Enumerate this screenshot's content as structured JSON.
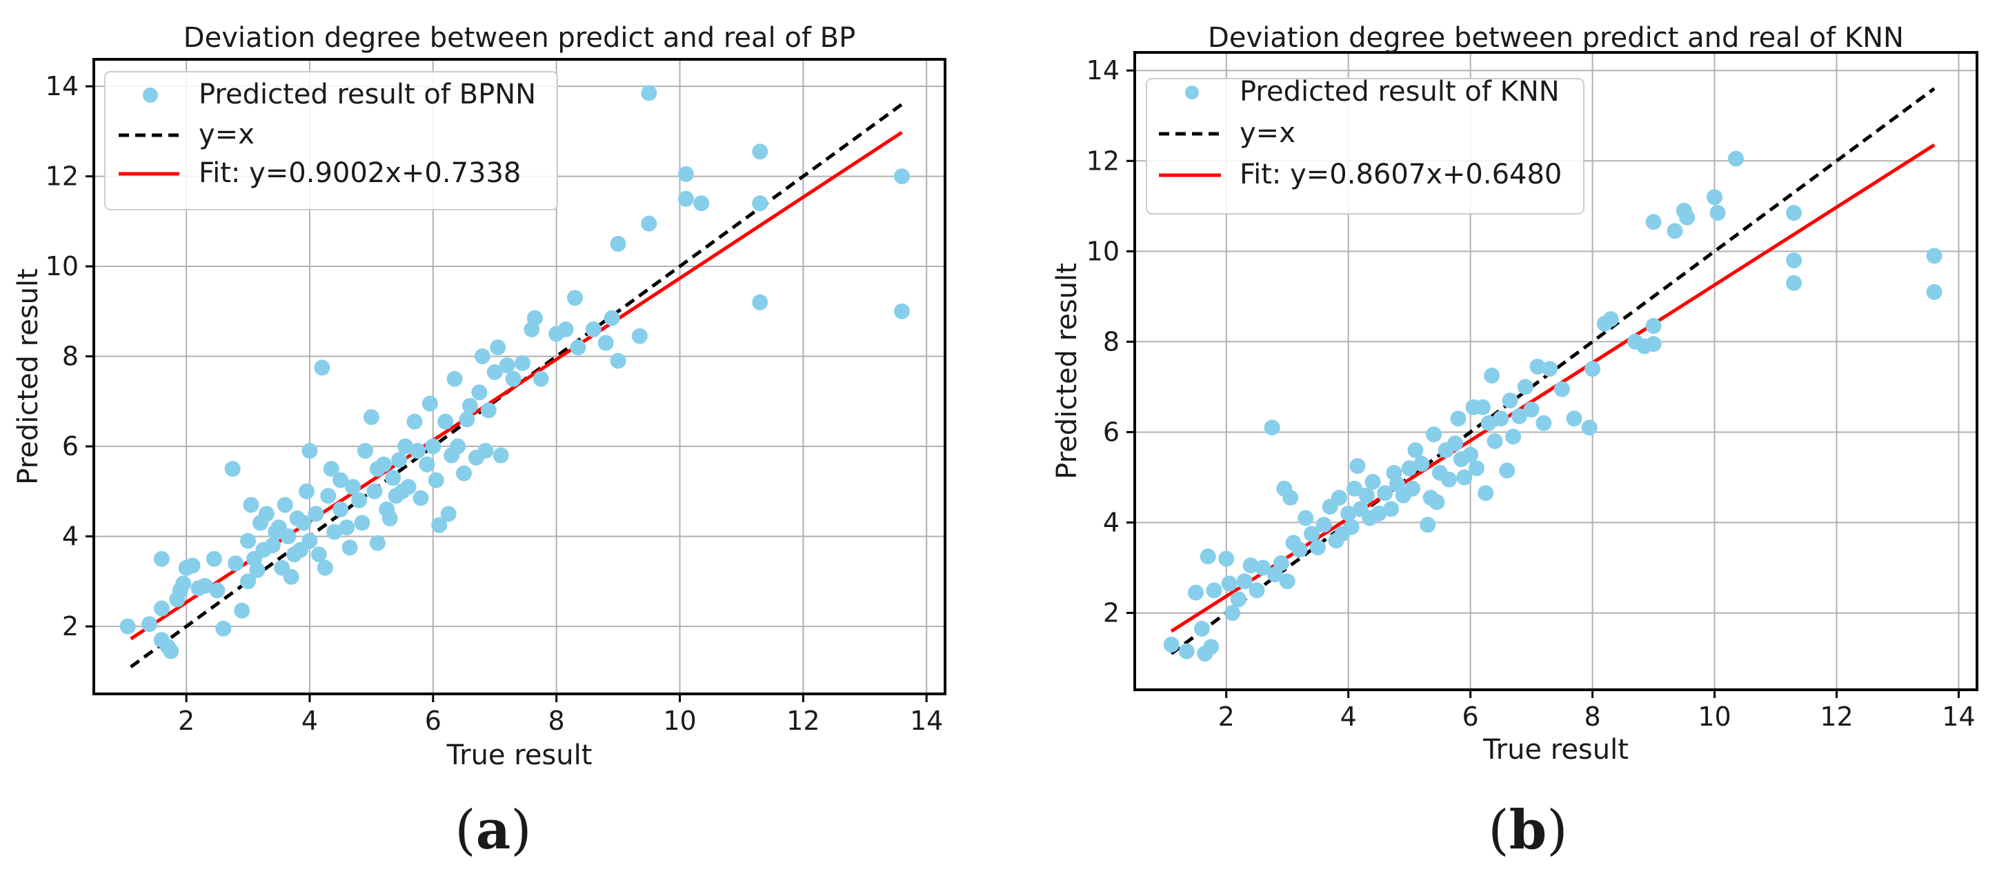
{
  "panel_labels": [
    "a",
    "b"
  ],
  "chart_data": [
    {
      "type": "scatter",
      "title": "Deviation degree between predict and real of BP",
      "xlabel": "True result",
      "ylabel": "Predicted result",
      "xlim": [
        0.5,
        14.3
      ],
      "ylim": [
        0.5,
        14.6
      ],
      "xticks": [
        2,
        4,
        6,
        8,
        10,
        12,
        14
      ],
      "yticks": [
        2,
        4,
        6,
        8,
        10,
        12,
        14
      ],
      "grid": true,
      "legend_position": "top-left",
      "colors": {
        "points": "#87ceeb",
        "identity": "#000000",
        "fit": "#ff0000"
      },
      "legend": [
        {
          "label": "Predicted result of BPNN",
          "kind": "marker"
        },
        {
          "label": "y=x",
          "kind": "dashed"
        },
        {
          "label": "Fit: y=0.9002x+0.7338",
          "kind": "line"
        }
      ],
      "lines": [
        {
          "kind": "identity",
          "x": [
            1.1,
            13.6
          ],
          "y": [
            1.1,
            13.6
          ]
        },
        {
          "kind": "fit",
          "slope": 0.9002,
          "intercept": 0.7338,
          "x": [
            1.1,
            13.6
          ]
        }
      ],
      "series": [
        {
          "name": "Predicted result of BPNN",
          "points": [
            [
              1.05,
              2.0
            ],
            [
              1.4,
              2.05
            ],
            [
              1.6,
              3.5
            ],
            [
              1.7,
              1.55
            ],
            [
              1.6,
              1.7
            ],
            [
              1.75,
              1.45
            ],
            [
              1.6,
              2.4
            ],
            [
              1.9,
              2.8
            ],
            [
              1.85,
              2.6
            ],
            [
              1.95,
              2.95
            ],
            [
              2.0,
              3.3
            ],
            [
              2.1,
              3.35
            ],
            [
              2.2,
              2.85
            ],
            [
              2.3,
              2.9
            ],
            [
              2.45,
              3.5
            ],
            [
              2.5,
              2.8
            ],
            [
              2.6,
              1.95
            ],
            [
              2.75,
              5.5
            ],
            [
              2.8,
              3.4
            ],
            [
              2.9,
              2.35
            ],
            [
              3.0,
              3.0
            ],
            [
              3.0,
              3.9
            ],
            [
              3.05,
              4.7
            ],
            [
              3.1,
              3.5
            ],
            [
              3.15,
              3.25
            ],
            [
              3.2,
              4.3
            ],
            [
              3.25,
              3.7
            ],
            [
              3.3,
              4.5
            ],
            [
              3.4,
              3.8
            ],
            [
              3.45,
              4.1
            ],
            [
              3.5,
              4.2
            ],
            [
              3.55,
              3.3
            ],
            [
              3.6,
              4.7
            ],
            [
              3.65,
              4.0
            ],
            [
              3.7,
              3.1
            ],
            [
              3.75,
              3.6
            ],
            [
              3.8,
              4.4
            ],
            [
              3.85,
              3.7
            ],
            [
              3.9,
              4.3
            ],
            [
              3.95,
              5.0
            ],
            [
              4.0,
              5.9
            ],
            [
              4.0,
              3.9
            ],
            [
              4.1,
              4.5
            ],
            [
              4.15,
              3.6
            ],
            [
              4.2,
              7.75
            ],
            [
              4.25,
              3.3
            ],
            [
              4.3,
              4.9
            ],
            [
              4.35,
              5.5
            ],
            [
              4.4,
              4.1
            ],
            [
              4.5,
              4.6
            ],
            [
              4.5,
              5.25
            ],
            [
              4.6,
              4.2
            ],
            [
              4.65,
              3.75
            ],
            [
              4.7,
              5.1
            ],
            [
              4.8,
              4.8
            ],
            [
              4.85,
              4.3
            ],
            [
              4.9,
              5.9
            ],
            [
              5.0,
              6.65
            ],
            [
              5.05,
              5.0
            ],
            [
              5.1,
              3.85
            ],
            [
              5.1,
              5.5
            ],
            [
              5.2,
              5.6
            ],
            [
              5.25,
              4.6
            ],
            [
              5.3,
              4.4
            ],
            [
              5.35,
              5.3
            ],
            [
              5.4,
              4.9
            ],
            [
              5.45,
              5.7
            ],
            [
              5.5,
              5.0
            ],
            [
              5.55,
              6.0
            ],
            [
              5.6,
              5.1
            ],
            [
              5.7,
              6.55
            ],
            [
              5.75,
              5.9
            ],
            [
              5.8,
              4.85
            ],
            [
              5.9,
              5.6
            ],
            [
              5.95,
              6.95
            ],
            [
              6.0,
              6.0
            ],
            [
              6.05,
              5.25
            ],
            [
              6.1,
              4.25
            ],
            [
              6.2,
              6.55
            ],
            [
              6.25,
              4.5
            ],
            [
              6.3,
              5.8
            ],
            [
              6.35,
              7.5
            ],
            [
              6.4,
              6.0
            ],
            [
              6.5,
              5.4
            ],
            [
              6.55,
              6.6
            ],
            [
              6.6,
              6.9
            ],
            [
              6.7,
              5.75
            ],
            [
              6.75,
              7.2
            ],
            [
              6.8,
              8.0
            ],
            [
              6.85,
              5.9
            ],
            [
              6.9,
              6.8
            ],
            [
              7.0,
              7.65
            ],
            [
              7.05,
              8.2
            ],
            [
              7.1,
              5.8
            ],
            [
              7.2,
              7.8
            ],
            [
              7.3,
              7.5
            ],
            [
              7.45,
              7.85
            ],
            [
              7.6,
              8.6
            ],
            [
              7.65,
              8.85
            ],
            [
              7.75,
              7.5
            ],
            [
              8.0,
              8.5
            ],
            [
              8.15,
              8.6
            ],
            [
              8.3,
              9.3
            ],
            [
              8.35,
              8.2
            ],
            [
              8.6,
              8.6
            ],
            [
              8.8,
              8.3
            ],
            [
              8.9,
              8.85
            ],
            [
              9.0,
              7.9
            ],
            [
              9.0,
              10.5
            ],
            [
              9.35,
              8.45
            ],
            [
              9.5,
              10.95
            ],
            [
              9.5,
              13.85
            ],
            [
              10.1,
              12.05
            ],
            [
              10.1,
              11.5
            ],
            [
              10.35,
              11.4
            ],
            [
              11.3,
              12.55
            ],
            [
              11.3,
              11.4
            ],
            [
              11.3,
              9.2
            ],
            [
              13.6,
              12.0
            ],
            [
              13.6,
              9.0
            ]
          ]
        }
      ]
    },
    {
      "type": "scatter",
      "title": "Deviation degree between predict and real of KNN",
      "xlabel": "True result",
      "ylabel": "Predicted result",
      "xlim": [
        0.5,
        14.3
      ],
      "ylim": [
        0.3,
        14.4
      ],
      "xticks": [
        2,
        4,
        6,
        8,
        10,
        12,
        14
      ],
      "yticks": [
        2,
        4,
        6,
        8,
        10,
        12,
        14
      ],
      "grid": true,
      "legend_position": "top-left",
      "colors": {
        "points": "#87ceeb",
        "identity": "#000000",
        "fit": "#ff0000"
      },
      "legend": [
        {
          "label": "Predicted result of KNN",
          "kind": "marker"
        },
        {
          "label": "y=x",
          "kind": "dashed"
        },
        {
          "label": "Fit: y=0.8607x+0.6480",
          "kind": "line"
        }
      ],
      "lines": [
        {
          "kind": "identity",
          "x": [
            1.1,
            13.6
          ],
          "y": [
            1.1,
            13.6
          ]
        },
        {
          "kind": "fit",
          "slope": 0.8607,
          "intercept": 0.648,
          "x": [
            1.1,
            13.6
          ]
        }
      ],
      "series": [
        {
          "name": "Predicted result of KNN",
          "points": [
            [
              1.1,
              1.3
            ],
            [
              1.35,
              1.15
            ],
            [
              1.5,
              2.45
            ],
            [
              1.6,
              1.65
            ],
            [
              1.65,
              1.1
            ],
            [
              1.75,
              1.25
            ],
            [
              1.7,
              3.25
            ],
            [
              1.8,
              2.5
            ],
            [
              2.0,
              3.2
            ],
            [
              2.05,
              2.65
            ],
            [
              2.1,
              2.0
            ],
            [
              2.2,
              2.3
            ],
            [
              2.3,
              2.7
            ],
            [
              2.4,
              3.05
            ],
            [
              2.5,
              2.5
            ],
            [
              2.6,
              3.0
            ],
            [
              2.75,
              6.1
            ],
            [
              2.8,
              2.85
            ],
            [
              2.9,
              3.1
            ],
            [
              2.95,
              4.75
            ],
            [
              3.0,
              2.7
            ],
            [
              3.05,
              4.55
            ],
            [
              3.1,
              3.55
            ],
            [
              3.2,
              3.4
            ],
            [
              3.3,
              4.1
            ],
            [
              3.4,
              3.75
            ],
            [
              3.5,
              3.45
            ],
            [
              3.6,
              3.95
            ],
            [
              3.7,
              4.35
            ],
            [
              3.8,
              3.6
            ],
            [
              3.85,
              4.55
            ],
            [
              3.9,
              3.75
            ],
            [
              4.0,
              4.2
            ],
            [
              4.05,
              3.9
            ],
            [
              4.1,
              4.75
            ],
            [
              4.15,
              5.25
            ],
            [
              4.2,
              4.3
            ],
            [
              4.3,
              4.6
            ],
            [
              4.35,
              4.1
            ],
            [
              4.4,
              4.9
            ],
            [
              4.5,
              4.2
            ],
            [
              4.6,
              4.65
            ],
            [
              4.7,
              4.3
            ],
            [
              4.75,
              5.1
            ],
            [
              4.8,
              4.85
            ],
            [
              4.9,
              4.6
            ],
            [
              5.0,
              5.2
            ],
            [
              5.05,
              4.75
            ],
            [
              5.1,
              5.6
            ],
            [
              5.2,
              5.3
            ],
            [
              5.3,
              3.95
            ],
            [
              5.35,
              4.55
            ],
            [
              5.4,
              5.95
            ],
            [
              5.45,
              4.45
            ],
            [
              5.5,
              5.1
            ],
            [
              5.6,
              5.6
            ],
            [
              5.65,
              4.95
            ],
            [
              5.75,
              5.75
            ],
            [
              5.8,
              6.3
            ],
            [
              5.85,
              5.4
            ],
            [
              5.9,
              5.0
            ],
            [
              6.0,
              5.5
            ],
            [
              6.05,
              6.55
            ],
            [
              6.1,
              5.2
            ],
            [
              6.2,
              6.55
            ],
            [
              6.25,
              4.65
            ],
            [
              6.3,
              6.2
            ],
            [
              6.35,
              7.25
            ],
            [
              6.4,
              5.8
            ],
            [
              6.5,
              6.3
            ],
            [
              6.6,
              5.15
            ],
            [
              6.65,
              6.7
            ],
            [
              6.7,
              5.9
            ],
            [
              6.8,
              6.35
            ],
            [
              6.9,
              7.0
            ],
            [
              7.0,
              6.5
            ],
            [
              7.1,
              7.45
            ],
            [
              7.2,
              6.2
            ],
            [
              7.3,
              7.4
            ],
            [
              7.5,
              6.95
            ],
            [
              7.7,
              6.3
            ],
            [
              7.95,
              6.1
            ],
            [
              8.0,
              7.4
            ],
            [
              8.2,
              8.4
            ],
            [
              8.3,
              8.5
            ],
            [
              8.7,
              8.0
            ],
            [
              8.85,
              7.9
            ],
            [
              9.0,
              7.95
            ],
            [
              9.0,
              8.35
            ],
            [
              9.0,
              10.65
            ],
            [
              9.35,
              10.45
            ],
            [
              9.5,
              10.9
            ],
            [
              9.55,
              10.75
            ],
            [
              10.0,
              11.2
            ],
            [
              10.05,
              10.85
            ],
            [
              10.35,
              12.05
            ],
            [
              11.3,
              10.85
            ],
            [
              11.3,
              9.8
            ],
            [
              11.3,
              9.3
            ],
            [
              13.6,
              9.9
            ],
            [
              13.6,
              9.1
            ]
          ]
        }
      ]
    }
  ]
}
